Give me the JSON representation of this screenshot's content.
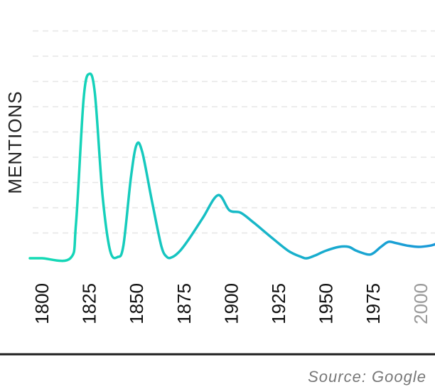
{
  "chart_data": {
    "type": "line",
    "title": "",
    "xlabel": "",
    "ylabel": "MENTIONS",
    "source": "Source: Google",
    "xlim": [
      1800,
      2015
    ],
    "ylim": [
      0,
      9
    ],
    "x_ticks": [
      1800,
      1825,
      1850,
      1875,
      1900,
      1925,
      1950,
      1975,
      2000
    ],
    "muted_ticks": [
      2000
    ],
    "grid": true,
    "grid_lines": [
      1,
      2,
      3,
      4,
      5,
      6,
      7,
      8,
      9
    ],
    "legend": "none",
    "gradient": [
      "#14dcb4",
      "#1a99d8"
    ],
    "series": [
      {
        "x": [
          1800,
          1815,
          1818,
          1822,
          1825,
          1828,
          1832,
          1836,
          1840,
          1843,
          1847,
          1850,
          1853,
          1858,
          1863,
          1866,
          1869,
          1873,
          1878,
          1885,
          1893,
          1899,
          1905,
          1912,
          1920,
          1930,
          1937,
          1940,
          1944,
          1950,
          1957,
          1962,
          1966,
          1972,
          1975,
          1979,
          1983,
          1987,
          1993,
          1999,
          2005,
          2010,
          2015
        ],
        "values": [
          0,
          0,
          1.4,
          6.3,
          7.3,
          6.5,
          2.5,
          0.3,
          0.05,
          0.5,
          3.2,
          4.5,
          4.2,
          2.3,
          0.5,
          0.05,
          0.05,
          0.3,
          0.8,
          1.6,
          2.5,
          1.9,
          1.8,
          1.4,
          0.9,
          0.3,
          0.05,
          0.0,
          0.1,
          0.3,
          0.45,
          0.45,
          0.3,
          0.15,
          0.2,
          0.45,
          0.65,
          0.6,
          0.5,
          0.45,
          0.5,
          0.6,
          0.6
        ]
      }
    ]
  }
}
